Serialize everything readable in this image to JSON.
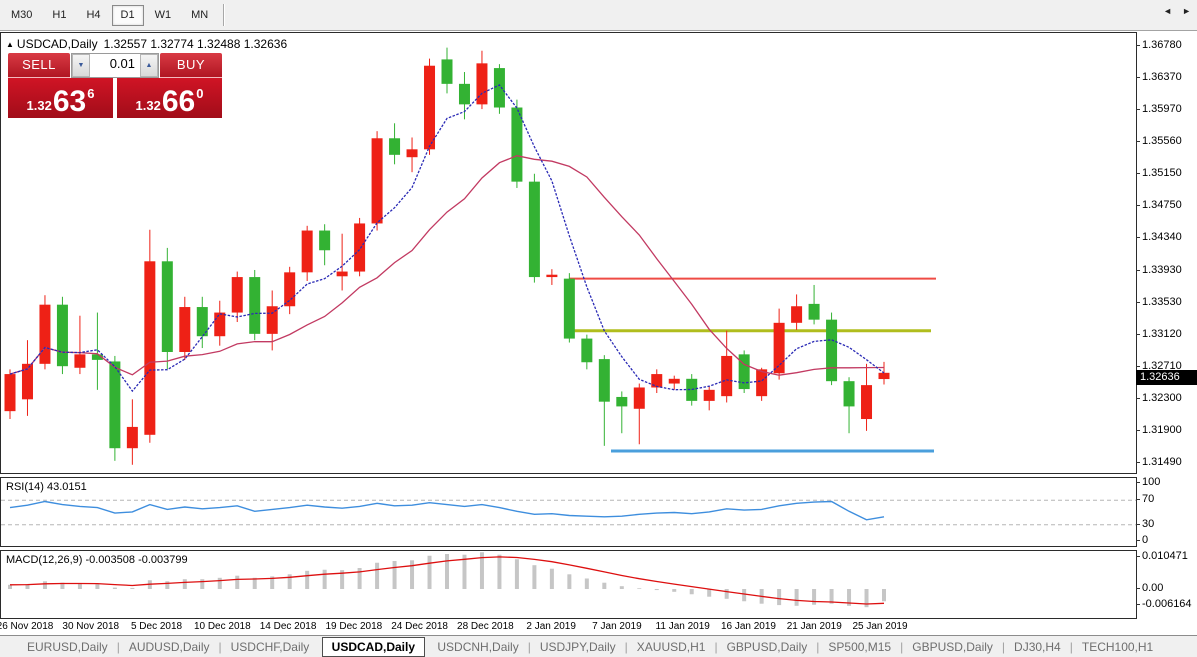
{
  "toolbar": {
    "timeframes": [
      {
        "label": "M30",
        "active": false
      },
      {
        "label": "H1",
        "active": false
      },
      {
        "label": "H4",
        "active": false
      },
      {
        "label": "D1",
        "active": true
      },
      {
        "label": "W1",
        "active": false
      },
      {
        "label": "MN",
        "active": false
      }
    ]
  },
  "header": {
    "collapse_icon": "▲",
    "symbol": "USDCAD,Daily",
    "ohlc_text": "1.32557 1.32774 1.32488 1.32636"
  },
  "trade_panel": {
    "sell_label": "SELL",
    "buy_label": "BUY",
    "volume": "0.01",
    "vol_down_icon": "▼",
    "vol_up_icon": "▲",
    "sell_price_prefix": "1.32",
    "sell_price_big": "63",
    "sell_price_sup": "6",
    "buy_price_prefix": "1.32",
    "buy_price_big": "66",
    "buy_price_sup": "0"
  },
  "price_axis": {
    "labels": [
      "1.36780",
      "1.36370",
      "1.35970",
      "1.35560",
      "1.35150",
      "1.34750",
      "1.34340",
      "1.33930",
      "1.33530",
      "1.33120",
      "1.32710",
      "1.32300",
      "1.31900",
      "1.31490"
    ],
    "current_price": "1.32636"
  },
  "rsi_panel": {
    "label": "RSI(14) 43.0151",
    "axis_labels": [
      {
        "value": "100",
        "y": 482
      },
      {
        "value": "70",
        "y": 499
      },
      {
        "value": "30",
        "y": 524
      },
      {
        "value": "0",
        "y": 540
      }
    ]
  },
  "macd_panel": {
    "label": "MACD(12,26,9) -0.003508 -0.003799",
    "axis_labels": [
      {
        "value": "0.010471",
        "y": 556
      },
      {
        "value": "0.00",
        "y": 588
      },
      {
        "value": "-0.006164",
        "y": 604
      }
    ]
  },
  "tabs": {
    "items": [
      {
        "label": "EURUSD,Daily",
        "active": false
      },
      {
        "label": "AUDUSD,Daily",
        "active": false
      },
      {
        "label": "USDCHF,Daily",
        "active": false
      },
      {
        "label": "USDCAD,Daily",
        "active": true
      },
      {
        "label": "USDCNH,Daily",
        "active": false
      },
      {
        "label": "USDJPY,Daily",
        "active": false
      },
      {
        "label": "XAUUSD,H1",
        "active": false
      },
      {
        "label": "GBPUSD,Daily",
        "active": false
      },
      {
        "label": "SP500,M15",
        "active": false
      },
      {
        "label": "GBPUSD,Daily",
        "active": false
      },
      {
        "label": "DJ30,H4",
        "active": false
      },
      {
        "label": "TECH100,H1",
        "active": false
      }
    ],
    "scroll_left_icon": "◄",
    "scroll_right_icon": "►"
  },
  "chart_data": {
    "type": "candlestick",
    "title": "USDCAD,Daily",
    "subtitle_ohlc": {
      "open": 1.32557,
      "high": 1.32774,
      "low": 1.32488,
      "close": 1.32636
    },
    "ylim": [
      1.3149,
      1.3678
    ],
    "bull_color": "#ee2116",
    "bear_color": "#33b233",
    "ma_fast": {
      "period": 5,
      "color": "#2a2ab5"
    },
    "ma_slow": {
      "period": 13,
      "color": "#c23a62"
    },
    "x_dates": [
      "26 Nov 2018",
      "30 Nov 2018",
      "5 Dec 2018",
      "10 Dec 2018",
      "14 Dec 2018",
      "19 Dec 2018",
      "24 Dec 2018",
      "28 Dec 2018",
      "2 Jan 2019",
      "7 Jan 2019",
      "11 Jan 2019",
      "16 Jan 2019",
      "21 Jan 2019",
      "25 Jan 2019"
    ],
    "candles": [
      [
        1.3215,
        1.3268,
        1.3205,
        1.3262
      ],
      [
        1.323,
        1.3305,
        1.3209,
        1.3275
      ],
      [
        1.3275,
        1.3362,
        1.3268,
        1.335
      ],
      [
        1.335,
        1.336,
        1.3262,
        1.3272
      ],
      [
        1.327,
        1.3336,
        1.3262,
        1.3287
      ],
      [
        1.3287,
        1.334,
        1.3242,
        1.328
      ],
      [
        1.3278,
        1.3285,
        1.3152,
        1.3168
      ],
      [
        1.3168,
        1.323,
        1.3147,
        1.3195
      ],
      [
        1.3185,
        1.3445,
        1.3175,
        1.3405
      ],
      [
        1.3405,
        1.3422,
        1.3268,
        1.329
      ],
      [
        1.329,
        1.336,
        1.328,
        1.3347
      ],
      [
        1.3347,
        1.336,
        1.3295,
        1.331
      ],
      [
        1.331,
        1.3355,
        1.3298,
        1.334
      ],
      [
        1.334,
        1.3392,
        1.3328,
        1.3385
      ],
      [
        1.3385,
        1.3394,
        1.3305,
        1.3313
      ],
      [
        1.3313,
        1.3368,
        1.3292,
        1.3348
      ],
      [
        1.3348,
        1.3398,
        1.3338,
        1.3391
      ],
      [
        1.3391,
        1.345,
        1.338,
        1.3444
      ],
      [
        1.3444,
        1.3452,
        1.34,
        1.3419
      ],
      [
        1.3386,
        1.344,
        1.3368,
        1.3392
      ],
      [
        1.3392,
        1.346,
        1.3386,
        1.3453
      ],
      [
        1.3453,
        1.357,
        1.3444,
        1.3561
      ],
      [
        1.3561,
        1.358,
        1.3528,
        1.354
      ],
      [
        1.3537,
        1.3562,
        1.3518,
        1.3547
      ],
      [
        1.3547,
        1.3662,
        1.354,
        1.3653
      ],
      [
        1.3661,
        1.3676,
        1.3618,
        1.363
      ],
      [
        1.363,
        1.3645,
        1.3585,
        1.3604
      ],
      [
        1.3604,
        1.3672,
        1.3598,
        1.3656
      ],
      [
        1.365,
        1.3655,
        1.3592,
        1.36
      ],
      [
        1.36,
        1.361,
        1.3498,
        1.3506
      ],
      [
        1.3506,
        1.3516,
        1.3378,
        1.3385
      ],
      [
        1.3385,
        1.3395,
        1.3375,
        1.3388
      ],
      [
        1.3383,
        1.339,
        1.3302,
        1.3307
      ],
      [
        1.3307,
        1.3312,
        1.3268,
        1.3277
      ],
      [
        1.3281,
        1.3286,
        1.3171,
        1.3227
      ],
      [
        1.3233,
        1.324,
        1.3187,
        1.3221
      ],
      [
        1.3218,
        1.325,
        1.3173,
        1.3245
      ],
      [
        1.3245,
        1.3268,
        1.3238,
        1.3262
      ],
      [
        1.325,
        1.326,
        1.3242,
        1.3256
      ],
      [
        1.3256,
        1.3262,
        1.3222,
        1.3228
      ],
      [
        1.3228,
        1.3246,
        1.3216,
        1.3242
      ],
      [
        1.3234,
        1.3317,
        1.3226,
        1.3285
      ],
      [
        1.3287,
        1.3292,
        1.3238,
        1.3243
      ],
      [
        1.3234,
        1.327,
        1.3228,
        1.3268
      ],
      [
        1.3263,
        1.3345,
        1.3255,
        1.3327
      ],
      [
        1.3327,
        1.3363,
        1.3318,
        1.3348
      ],
      [
        1.3351,
        1.3375,
        1.3325,
        1.3331
      ],
      [
        1.3331,
        1.334,
        1.3248,
        1.3253
      ],
      [
        1.3253,
        1.3258,
        1.3187,
        1.3221
      ],
      [
        1.3205,
        1.3275,
        1.319,
        1.3248
      ],
      [
        1.32557,
        1.32774,
        1.32488,
        1.32636
      ]
    ],
    "hlines": [
      {
        "name": "resistance-line",
        "price": 1.3383,
        "color": "#ef4b45",
        "x1": 568,
        "x2": 935,
        "width": 2
      },
      {
        "name": "pivot-line",
        "price": 1.3317,
        "color": "#b0bd1d",
        "x1": 570,
        "x2": 930,
        "width": 3
      },
      {
        "name": "support-line",
        "price": 1.31645,
        "color": "#4a9fdc",
        "x1": 610,
        "x2": 933,
        "width": 3
      }
    ],
    "rsi": {
      "type": "line",
      "color": "#3e8ede",
      "levels": [
        70,
        30
      ],
      "current": 43.0151,
      "values": [
        58,
        62,
        68,
        63,
        60,
        58,
        49,
        51,
        63,
        55,
        59,
        56,
        58,
        61,
        52,
        55,
        58,
        62,
        59,
        57,
        60,
        65,
        61,
        62,
        66,
        63,
        60,
        63,
        58,
        52,
        47,
        48,
        45,
        44,
        43,
        44,
        47,
        49,
        50,
        48,
        51,
        56,
        54,
        55,
        61,
        65,
        67,
        68,
        52,
        38,
        43.0151
      ]
    },
    "macd": {
      "type": "histogram+signal",
      "bar_color": "#c6c6c6",
      "signal_color": "#dd0f0f",
      "main_current": -0.003508,
      "signal_current": -0.003799,
      "values": [
        0.0012,
        0.0014,
        0.0022,
        0.0018,
        0.0016,
        0.0014,
        0.0004,
        0.0003,
        0.0025,
        0.0022,
        0.0028,
        0.0028,
        0.0032,
        0.0038,
        0.0032,
        0.0036,
        0.0042,
        0.0052,
        0.0055,
        0.0054,
        0.006,
        0.0075,
        0.008,
        0.0082,
        0.0095,
        0.01,
        0.0098,
        0.0105,
        0.0098,
        0.0085,
        0.0068,
        0.0058,
        0.0042,
        0.003,
        0.0018,
        0.0008,
        0.0002,
        -0.0003,
        -0.0008,
        -0.0015,
        -0.0022,
        -0.0028,
        -0.0035,
        -0.0042,
        -0.0046,
        -0.0048,
        -0.0045,
        -0.0042,
        -0.0048,
        -0.0052,
        -0.003508
      ]
    }
  }
}
